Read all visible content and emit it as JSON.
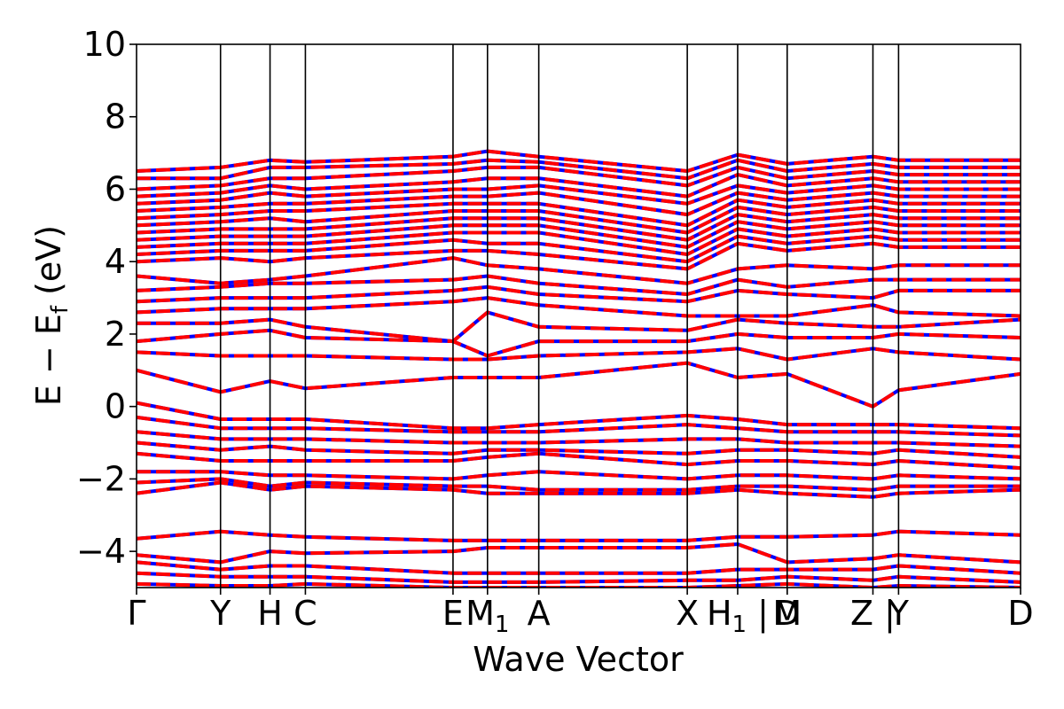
{
  "chart_data": {
    "type": "line",
    "xlabel": "Wave Vector",
    "ylabel": "E − Ef (eV)",
    "ylabel_parts": {
      "main": "E − E",
      "sub": "f",
      "unit": " (eV)"
    },
    "ylim": [
      -5,
      10
    ],
    "yticks": [
      10,
      8,
      6,
      4,
      2,
      0,
      -2,
      -4
    ],
    "ytick_labels": [
      "10",
      "8",
      "6",
      "4",
      "2",
      "0",
      "−2",
      "−4"
    ],
    "kpath": [
      {
        "label": "Γ",
        "pos": 0.0
      },
      {
        "label": "Y",
        "pos": 0.095
      },
      {
        "label": "H",
        "pos": 0.151
      },
      {
        "label": "C",
        "pos": 0.191
      },
      {
        "label": "E",
        "pos": 0.358
      },
      {
        "label": "M",
        "sub": "1",
        "pos": 0.397
      },
      {
        "label": "A",
        "pos": 0.455
      },
      {
        "label": "X",
        "pos": 0.623
      },
      {
        "label": "H",
        "sub": "1",
        "pos": 0.68,
        "suffix": " |"
      },
      {
        "label": "M",
        "pos": 0.736
      },
      {
        "label": "D",
        "pos": 0.736
      },
      {
        "label": "Z",
        "pos": 0.833,
        "suffix": " |"
      },
      {
        "label": "Y",
        "pos": 0.862
      },
      {
        "label": "D",
        "pos": 1.0
      }
    ],
    "grid": false,
    "legend": "none",
    "colors": {
      "spin_up": "#0000ff",
      "spin_down": "#ff0000"
    },
    "bands": [
      {
        "x": [
          0,
          0.095,
          0.151,
          0.191,
          0.358,
          0.397,
          0.455,
          0.623,
          0.68,
          0.736,
          0.833,
          0.862,
          1.0
        ],
        "y": [
          6.5,
          6.6,
          6.8,
          6.75,
          6.9,
          7.05,
          6.9,
          6.5,
          6.95,
          6.7,
          6.9,
          6.8,
          6.8
        ]
      },
      {
        "x": [
          0,
          0.095,
          0.151,
          0.191,
          0.358,
          0.397,
          0.455,
          0.623,
          0.68,
          0.736,
          0.833,
          0.862,
          1.0
        ],
        "y": [
          6.3,
          6.3,
          6.6,
          6.6,
          6.7,
          6.8,
          6.75,
          6.3,
          6.8,
          6.5,
          6.7,
          6.6,
          6.6
        ]
      },
      {
        "x": [
          0,
          0.095,
          0.151,
          0.191,
          0.358,
          0.397,
          0.455,
          0.623,
          0.68,
          0.736,
          0.833,
          0.862,
          1.0
        ],
        "y": [
          6.0,
          6.1,
          6.3,
          6.3,
          6.5,
          6.6,
          6.6,
          6.1,
          6.6,
          6.3,
          6.5,
          6.4,
          6.4
        ]
      },
      {
        "x": [
          0,
          0.095,
          0.151,
          0.191,
          0.358,
          0.397,
          0.455,
          0.623,
          0.68,
          0.736,
          0.833,
          0.862,
          1.0
        ],
        "y": [
          5.8,
          5.9,
          6.1,
          6.0,
          6.2,
          6.3,
          6.3,
          5.8,
          6.4,
          6.1,
          6.3,
          6.2,
          6.2
        ]
      },
      {
        "x": [
          0,
          0.095,
          0.151,
          0.191,
          0.358,
          0.397,
          0.455,
          0.623,
          0.68,
          0.736,
          0.833,
          0.862,
          1.0
        ],
        "y": [
          5.6,
          5.7,
          5.9,
          5.8,
          6.0,
          6.0,
          6.1,
          5.6,
          6.1,
          5.9,
          6.1,
          6.0,
          6.0
        ]
      },
      {
        "x": [
          0,
          0.095,
          0.151,
          0.191,
          0.358,
          0.397,
          0.455,
          0.623,
          0.68,
          0.736,
          0.833,
          0.862,
          1.0
        ],
        "y": [
          5.4,
          5.5,
          5.6,
          5.6,
          5.8,
          5.8,
          5.9,
          5.3,
          5.9,
          5.7,
          5.9,
          5.8,
          5.8
        ]
      },
      {
        "x": [
          0,
          0.095,
          0.151,
          0.191,
          0.358,
          0.397,
          0.455,
          0.623,
          0.68,
          0.736,
          0.833,
          0.862,
          1.0
        ],
        "y": [
          5.2,
          5.3,
          5.4,
          5.4,
          5.6,
          5.6,
          5.6,
          5.0,
          5.7,
          5.5,
          5.7,
          5.6,
          5.6
        ]
      },
      {
        "x": [
          0,
          0.095,
          0.151,
          0.191,
          0.358,
          0.397,
          0.455,
          0.623,
          0.68,
          0.736,
          0.833,
          0.862,
          1.0
        ],
        "y": [
          5.0,
          5.1,
          5.2,
          5.1,
          5.4,
          5.4,
          5.4,
          4.8,
          5.5,
          5.3,
          5.5,
          5.4,
          5.4
        ]
      },
      {
        "x": [
          0,
          0.095,
          0.151,
          0.191,
          0.358,
          0.397,
          0.455,
          0.623,
          0.68,
          0.736,
          0.833,
          0.862,
          1.0
        ],
        "y": [
          4.8,
          4.9,
          4.9,
          4.9,
          5.2,
          5.2,
          5.2,
          4.6,
          5.3,
          5.1,
          5.3,
          5.2,
          5.2
        ]
      },
      {
        "x": [
          0,
          0.095,
          0.151,
          0.191,
          0.358,
          0.397,
          0.455,
          0.623,
          0.68,
          0.736,
          0.833,
          0.862,
          1.0
        ],
        "y": [
          4.6,
          4.7,
          4.7,
          4.7,
          5.0,
          5.0,
          5.0,
          4.4,
          5.1,
          4.9,
          5.1,
          5.0,
          5.0
        ]
      },
      {
        "x": [
          0,
          0.095,
          0.151,
          0.191,
          0.358,
          0.397,
          0.455,
          0.623,
          0.68,
          0.736,
          0.833,
          0.862,
          1.0
        ],
        "y": [
          4.4,
          4.5,
          4.5,
          4.5,
          4.8,
          4.8,
          4.8,
          4.2,
          4.9,
          4.7,
          4.9,
          4.8,
          4.8
        ]
      },
      {
        "x": [
          0,
          0.095,
          0.151,
          0.191,
          0.358,
          0.397,
          0.455,
          0.623,
          0.68,
          0.736,
          0.833,
          0.862,
          1.0
        ],
        "y": [
          4.2,
          4.3,
          4.3,
          4.3,
          4.6,
          4.5,
          4.5,
          4.0,
          4.7,
          4.5,
          4.7,
          4.6,
          4.6
        ]
      },
      {
        "x": [
          0,
          0.095,
          0.151,
          0.191,
          0.358,
          0.397,
          0.455,
          0.623,
          0.68,
          0.736,
          0.833,
          0.862,
          1.0
        ],
        "y": [
          4.0,
          4.1,
          4.0,
          4.1,
          4.3,
          4.3,
          4.2,
          3.8,
          4.5,
          4.3,
          4.5,
          4.4,
          4.4
        ]
      },
      {
        "x": [
          0,
          0.095,
          0.151,
          0.191,
          0.358,
          0.397,
          0.455,
          0.623,
          0.68,
          0.736,
          0.833,
          0.862,
          1.0
        ],
        "y": [
          3.6,
          3.4,
          3.5,
          3.6,
          4.1,
          3.9,
          3.8,
          3.4,
          3.8,
          3.9,
          3.8,
          3.9,
          3.9
        ]
      },
      {
        "x": [
          0,
          0.095,
          0.151,
          0.191,
          0.358,
          0.397,
          0.455,
          0.623,
          0.68,
          0.736,
          0.833,
          0.862,
          1.0
        ],
        "y": [
          3.2,
          3.3,
          3.4,
          3.4,
          3.5,
          3.6,
          3.4,
          3.1,
          3.5,
          3.3,
          3.5,
          3.5,
          3.5
        ]
      },
      {
        "x": [
          0,
          0.095,
          0.151,
          0.191,
          0.358,
          0.397,
          0.455,
          0.623,
          0.68,
          0.736,
          0.833,
          0.862,
          1.0
        ],
        "y": [
          2.9,
          3.0,
          3.0,
          3.0,
          3.2,
          3.3,
          3.1,
          2.9,
          3.2,
          3.1,
          3.0,
          3.2,
          3.2
        ]
      },
      {
        "x": [
          0,
          0.095,
          0.151,
          0.191,
          0.358,
          0.397,
          0.455,
          0.623,
          0.68,
          0.736,
          0.833,
          0.862,
          1.0
        ],
        "y": [
          2.6,
          2.7,
          2.7,
          2.7,
          2.9,
          3.0,
          2.8,
          2.5,
          2.5,
          2.5,
          2.8,
          2.6,
          2.5
        ]
      },
      {
        "x": [
          0,
          0.095,
          0.151,
          0.191,
          0.358,
          0.397,
          0.455,
          0.623,
          0.68,
          0.736,
          0.833,
          0.862,
          1.0
        ],
        "y": [
          2.3,
          2.3,
          2.4,
          2.2,
          1.8,
          2.6,
          2.2,
          2.1,
          2.4,
          2.3,
          2.2,
          2.2,
          2.4
        ]
      },
      {
        "x": [
          0,
          0.095,
          0.151,
          0.191,
          0.358,
          0.397,
          0.455,
          0.623,
          0.68,
          0.736,
          0.833,
          0.862,
          1.0
        ],
        "y": [
          1.8,
          2.0,
          2.1,
          1.9,
          1.8,
          1.4,
          1.8,
          1.8,
          2.0,
          1.9,
          1.9,
          2.0,
          1.9
        ]
      },
      {
        "x": [
          0,
          0.095,
          0.151,
          0.191,
          0.358,
          0.397,
          0.455,
          0.623,
          0.68,
          0.736,
          0.833,
          0.862,
          1.0
        ],
        "y": [
          1.5,
          1.4,
          1.4,
          1.4,
          1.3,
          1.3,
          1.4,
          1.5,
          1.6,
          1.3,
          1.6,
          1.5,
          1.3
        ]
      },
      {
        "x": [
          0,
          0.095,
          0.151,
          0.191,
          0.358,
          0.397,
          0.455,
          0.623,
          0.68,
          0.736,
          0.833,
          0.862,
          1.0
        ],
        "y": [
          1.0,
          0.4,
          0.7,
          0.5,
          0.8,
          0.8,
          0.8,
          1.2,
          0.8,
          0.9,
          0.0,
          0.45,
          0.9
        ]
      },
      {
        "x": [
          0,
          0.095,
          0.151,
          0.191,
          0.358,
          0.397,
          0.455,
          0.623,
          0.68,
          0.736,
          0.833,
          0.862,
          1.0
        ],
        "y": [
          0.1,
          -0.35,
          -0.35,
          -0.35,
          -0.6,
          -0.6,
          -0.5,
          -0.25,
          -0.35,
          -0.5,
          -0.5,
          -0.5,
          -0.6
        ]
      },
      {
        "x": [
          0,
          0.095,
          0.151,
          0.191,
          0.358,
          0.397,
          0.455,
          0.623,
          0.68,
          0.736,
          0.833,
          0.862,
          1.0
        ],
        "y": [
          -0.3,
          -0.6,
          -0.6,
          -0.6,
          -0.7,
          -0.7,
          -0.7,
          -0.5,
          -0.6,
          -0.7,
          -0.7,
          -0.7,
          -0.8
        ]
      },
      {
        "x": [
          0,
          0.095,
          0.151,
          0.191,
          0.358,
          0.397,
          0.455,
          0.623,
          0.68,
          0.736,
          0.833,
          0.862,
          1.0
        ],
        "y": [
          -0.7,
          -0.9,
          -0.9,
          -0.9,
          -1.0,
          -1.0,
          -1.0,
          -0.9,
          -0.9,
          -1.0,
          -1.0,
          -1.0,
          -1.1
        ]
      },
      {
        "x": [
          0,
          0.095,
          0.151,
          0.191,
          0.358,
          0.397,
          0.455,
          0.623,
          0.68,
          0.736,
          0.833,
          0.862,
          1.0
        ],
        "y": [
          -1.0,
          -1.2,
          -1.1,
          -1.2,
          -1.3,
          -1.2,
          -1.2,
          -1.3,
          -1.2,
          -1.2,
          -1.3,
          -1.2,
          -1.4
        ]
      },
      {
        "x": [
          0,
          0.095,
          0.151,
          0.191,
          0.358,
          0.397,
          0.455,
          0.623,
          0.68,
          0.736,
          0.833,
          0.862,
          1.0
        ],
        "y": [
          -1.3,
          -1.5,
          -1.5,
          -1.5,
          -1.5,
          -1.4,
          -1.3,
          -1.6,
          -1.5,
          -1.5,
          -1.6,
          -1.5,
          -1.7
        ]
      },
      {
        "x": [
          0,
          0.095,
          0.151,
          0.191,
          0.358,
          0.397,
          0.455,
          0.623,
          0.68,
          0.736,
          0.833,
          0.862,
          1.0
        ],
        "y": [
          -1.8,
          -1.8,
          -1.9,
          -1.9,
          -2.0,
          -1.9,
          -1.8,
          -2.0,
          -1.9,
          -1.9,
          -2.0,
          -1.9,
          -2.0
        ]
      },
      {
        "x": [
          0,
          0.095,
          0.151,
          0.191,
          0.358,
          0.397,
          0.455,
          0.623,
          0.68,
          0.736,
          0.833,
          0.862,
          1.0
        ],
        "y": [
          -2.1,
          -2.0,
          -2.2,
          -2.1,
          -2.2,
          -2.2,
          -2.3,
          -2.3,
          -2.2,
          -2.2,
          -2.3,
          -2.2,
          -2.2
        ]
      },
      {
        "x": [
          0,
          0.095,
          0.151,
          0.191,
          0.358,
          0.397,
          0.455,
          0.623,
          0.68,
          0.736,
          0.833,
          0.862,
          1.0
        ],
        "y": [
          -2.4,
          -2.1,
          -2.3,
          -2.2,
          -2.3,
          -2.4,
          -2.4,
          -2.4,
          -2.3,
          -2.4,
          -2.5,
          -2.4,
          -2.3
        ]
      },
      {
        "x": [
          0,
          0.095,
          0.151,
          0.191,
          0.358,
          0.397,
          0.455,
          0.623,
          0.68,
          0.736,
          0.833,
          0.862,
          1.0
        ],
        "y": [
          -3.65,
          -3.45,
          -3.55,
          -3.6,
          -3.7,
          -3.7,
          -3.7,
          -3.7,
          -3.6,
          -3.6,
          -3.55,
          -3.45,
          -3.55
        ]
      },
      {
        "x": [
          0,
          0.095,
          0.151,
          0.191,
          0.358,
          0.397,
          0.455,
          0.623,
          0.68,
          0.736,
          0.833,
          0.862,
          1.0
        ],
        "y": [
          -4.1,
          -4.3,
          -4.0,
          -4.05,
          -4.0,
          -3.9,
          -3.9,
          -3.9,
          -3.8,
          -4.3,
          -4.2,
          -4.1,
          -4.3
        ]
      },
      {
        "x": [
          0,
          0.095,
          0.151,
          0.191,
          0.358,
          0.397,
          0.455,
          0.623,
          0.68,
          0.736,
          0.833,
          0.862,
          1.0
        ],
        "y": [
          -4.3,
          -4.5,
          -4.4,
          -4.4,
          -4.6,
          -4.6,
          -4.6,
          -4.6,
          -4.5,
          -4.5,
          -4.5,
          -4.4,
          -4.6
        ]
      },
      {
        "x": [
          0,
          0.095,
          0.151,
          0.191,
          0.358,
          0.397,
          0.455,
          0.623,
          0.68,
          0.736,
          0.833,
          0.862,
          1.0
        ],
        "y": [
          -4.6,
          -4.7,
          -4.7,
          -4.7,
          -4.85,
          -4.85,
          -4.85,
          -4.8,
          -4.8,
          -4.7,
          -4.8,
          -4.7,
          -4.85
        ]
      },
      {
        "x": [
          0,
          0.095,
          0.151,
          0.191,
          0.358,
          0.397,
          0.455,
          0.623,
          0.68,
          0.736,
          0.833,
          0.862,
          1.0
        ],
        "y": [
          -4.9,
          -4.95,
          -4.95,
          -4.9,
          -5.0,
          -5.0,
          -5.0,
          -5.0,
          -4.95,
          -4.9,
          -5.0,
          -4.95,
          -5.0
        ]
      }
    ]
  }
}
